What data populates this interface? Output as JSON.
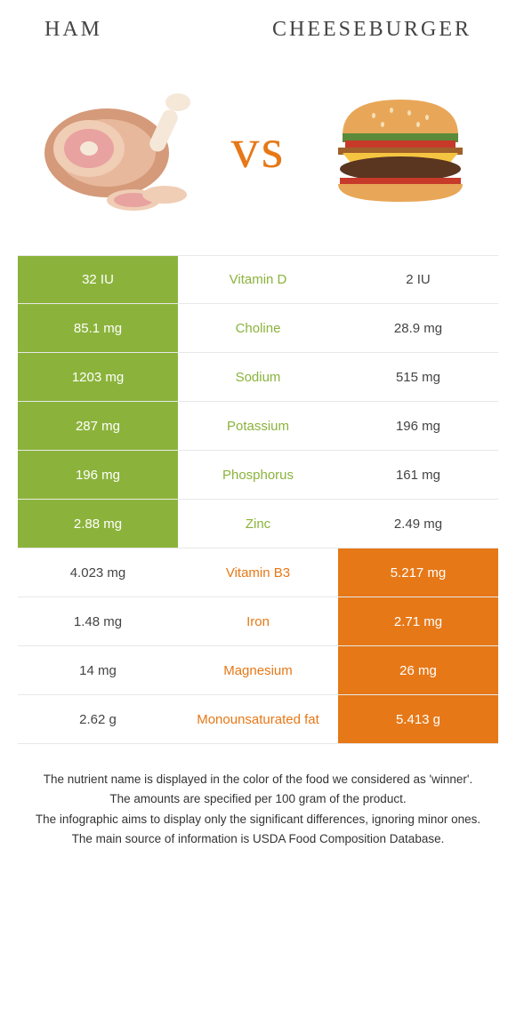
{
  "header": {
    "left": "Ham",
    "right": "Cheeseburger"
  },
  "vs": "vs",
  "colors": {
    "green": "#8bb33b",
    "orange": "#e67817",
    "text": "#444444",
    "border": "#e8e8e8"
  },
  "rows": [
    {
      "left": "32 IU",
      "label": "Vitamin D",
      "right": "2 IU",
      "winner": "left"
    },
    {
      "left": "85.1 mg",
      "label": "Choline",
      "right": "28.9 mg",
      "winner": "left"
    },
    {
      "left": "1203 mg",
      "label": "Sodium",
      "right": "515 mg",
      "winner": "left"
    },
    {
      "left": "287 mg",
      "label": "Potassium",
      "right": "196 mg",
      "winner": "left"
    },
    {
      "left": "196 mg",
      "label": "Phosphorus",
      "right": "161 mg",
      "winner": "left"
    },
    {
      "left": "2.88 mg",
      "label": "Zinc",
      "right": "2.49 mg",
      "winner": "left"
    },
    {
      "left": "4.023 mg",
      "label": "Vitamin B3",
      "right": "5.217 mg",
      "winner": "right"
    },
    {
      "left": "1.48 mg",
      "label": "Iron",
      "right": "2.71 mg",
      "winner": "right"
    },
    {
      "left": "14 mg",
      "label": "Magnesium",
      "right": "26 mg",
      "winner": "right"
    },
    {
      "left": "2.62 g",
      "label": "Monounsaturated fat",
      "right": "5.413 g",
      "winner": "right"
    }
  ],
  "footer": {
    "line1": "The nutrient name is displayed in the color of the food we considered as 'winner'.",
    "line2": "The amounts are specified per 100 gram of the product.",
    "line3": "The infographic aims to display only the significant differences, ignoring minor ones.",
    "line4": "The main source of information is USDA Food Composition Database."
  }
}
